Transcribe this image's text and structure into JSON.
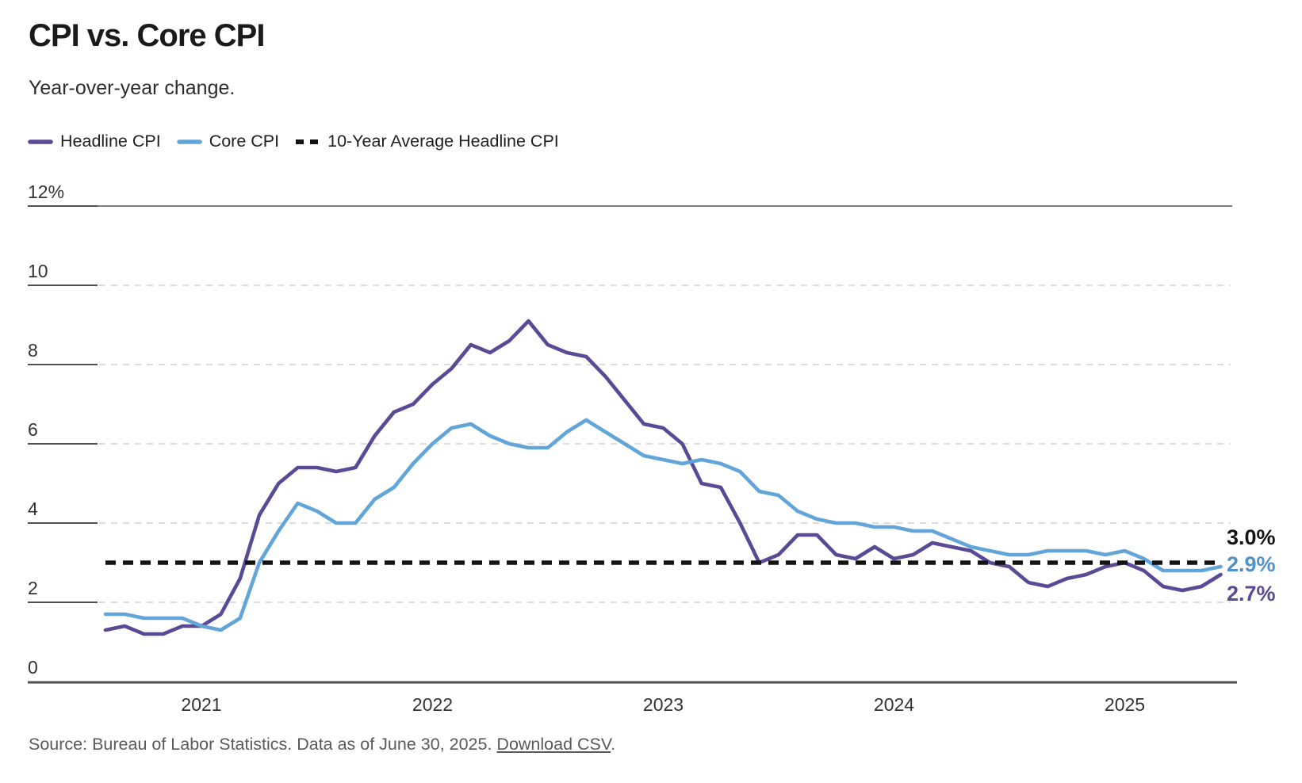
{
  "header": {
    "title": "CPI vs. Core CPI",
    "subtitle": "Year-over-year change."
  },
  "legend": [
    {
      "label": "Headline CPI",
      "color": "#5a4a96",
      "style": "solid"
    },
    {
      "label": "Core CPI",
      "color": "#61a5d9",
      "style": "solid"
    },
    {
      "label": "10-Year Average Headline CPI",
      "color": "#141414",
      "style": "dashed"
    }
  ],
  "chart_data": {
    "type": "line",
    "title": "CPI vs. Core CPI",
    "subtitle": "Year-over-year change.",
    "x_unit": "month",
    "x_start": "2020-08",
    "x_end": "2025-06",
    "x_tick_labels": [
      "2021",
      "2022",
      "2023",
      "2024",
      "2025"
    ],
    "y_tick_labels": [
      "12%",
      "10",
      "8",
      "6",
      "4",
      "2",
      "0"
    ],
    "ylim": [
      0,
      12
    ],
    "grid": "horizontal-dashed",
    "series": [
      {
        "name": "Headline CPI",
        "color": "#5a4a96",
        "values": [
          1.3,
          1.4,
          1.2,
          1.2,
          1.4,
          1.4,
          1.7,
          2.6,
          4.2,
          5.0,
          5.4,
          5.4,
          5.3,
          5.4,
          6.2,
          6.8,
          7.0,
          7.5,
          7.9,
          8.5,
          8.3,
          8.6,
          9.1,
          8.5,
          8.3,
          8.2,
          7.7,
          7.1,
          6.5,
          6.4,
          6.0,
          5.0,
          4.9,
          4.0,
          3.0,
          3.2,
          3.7,
          3.7,
          3.2,
          3.1,
          3.4,
          3.1,
          3.2,
          3.5,
          3.4,
          3.3,
          3.0,
          2.9,
          2.5,
          2.4,
          2.6,
          2.7,
          2.9,
          3.0,
          2.8,
          2.4,
          2.3,
          2.4,
          2.7
        ]
      },
      {
        "name": "Core CPI",
        "color": "#61a5d9",
        "values": [
          1.7,
          1.7,
          1.6,
          1.6,
          1.6,
          1.4,
          1.3,
          1.6,
          3.0,
          3.8,
          4.5,
          4.3,
          4.0,
          4.0,
          4.6,
          4.9,
          5.5,
          6.0,
          6.4,
          6.5,
          6.2,
          6.0,
          5.9,
          5.9,
          6.3,
          6.6,
          6.3,
          6.0,
          5.7,
          5.6,
          5.5,
          5.6,
          5.5,
          5.3,
          4.8,
          4.7,
          4.3,
          4.1,
          4.0,
          4.0,
          3.9,
          3.9,
          3.8,
          3.8,
          3.6,
          3.4,
          3.3,
          3.2,
          3.2,
          3.3,
          3.3,
          3.3,
          3.2,
          3.3,
          3.1,
          2.8,
          2.8,
          2.8,
          2.9
        ]
      },
      {
        "name": "10-Year Average Headline CPI",
        "color": "#141414",
        "dashed": true,
        "constant": 3.0
      }
    ],
    "end_labels": [
      {
        "text": "3.0%",
        "color": "#141414"
      },
      {
        "text": "2.9%",
        "color": "#4e92c8"
      },
      {
        "text": "2.7%",
        "color": "#5a4a96"
      }
    ]
  },
  "footer": {
    "source_prefix": "Source: Bureau of Labor Statistics. Data as of June 30, 2025. ",
    "link_text": "Download CSV",
    "suffix": "."
  }
}
